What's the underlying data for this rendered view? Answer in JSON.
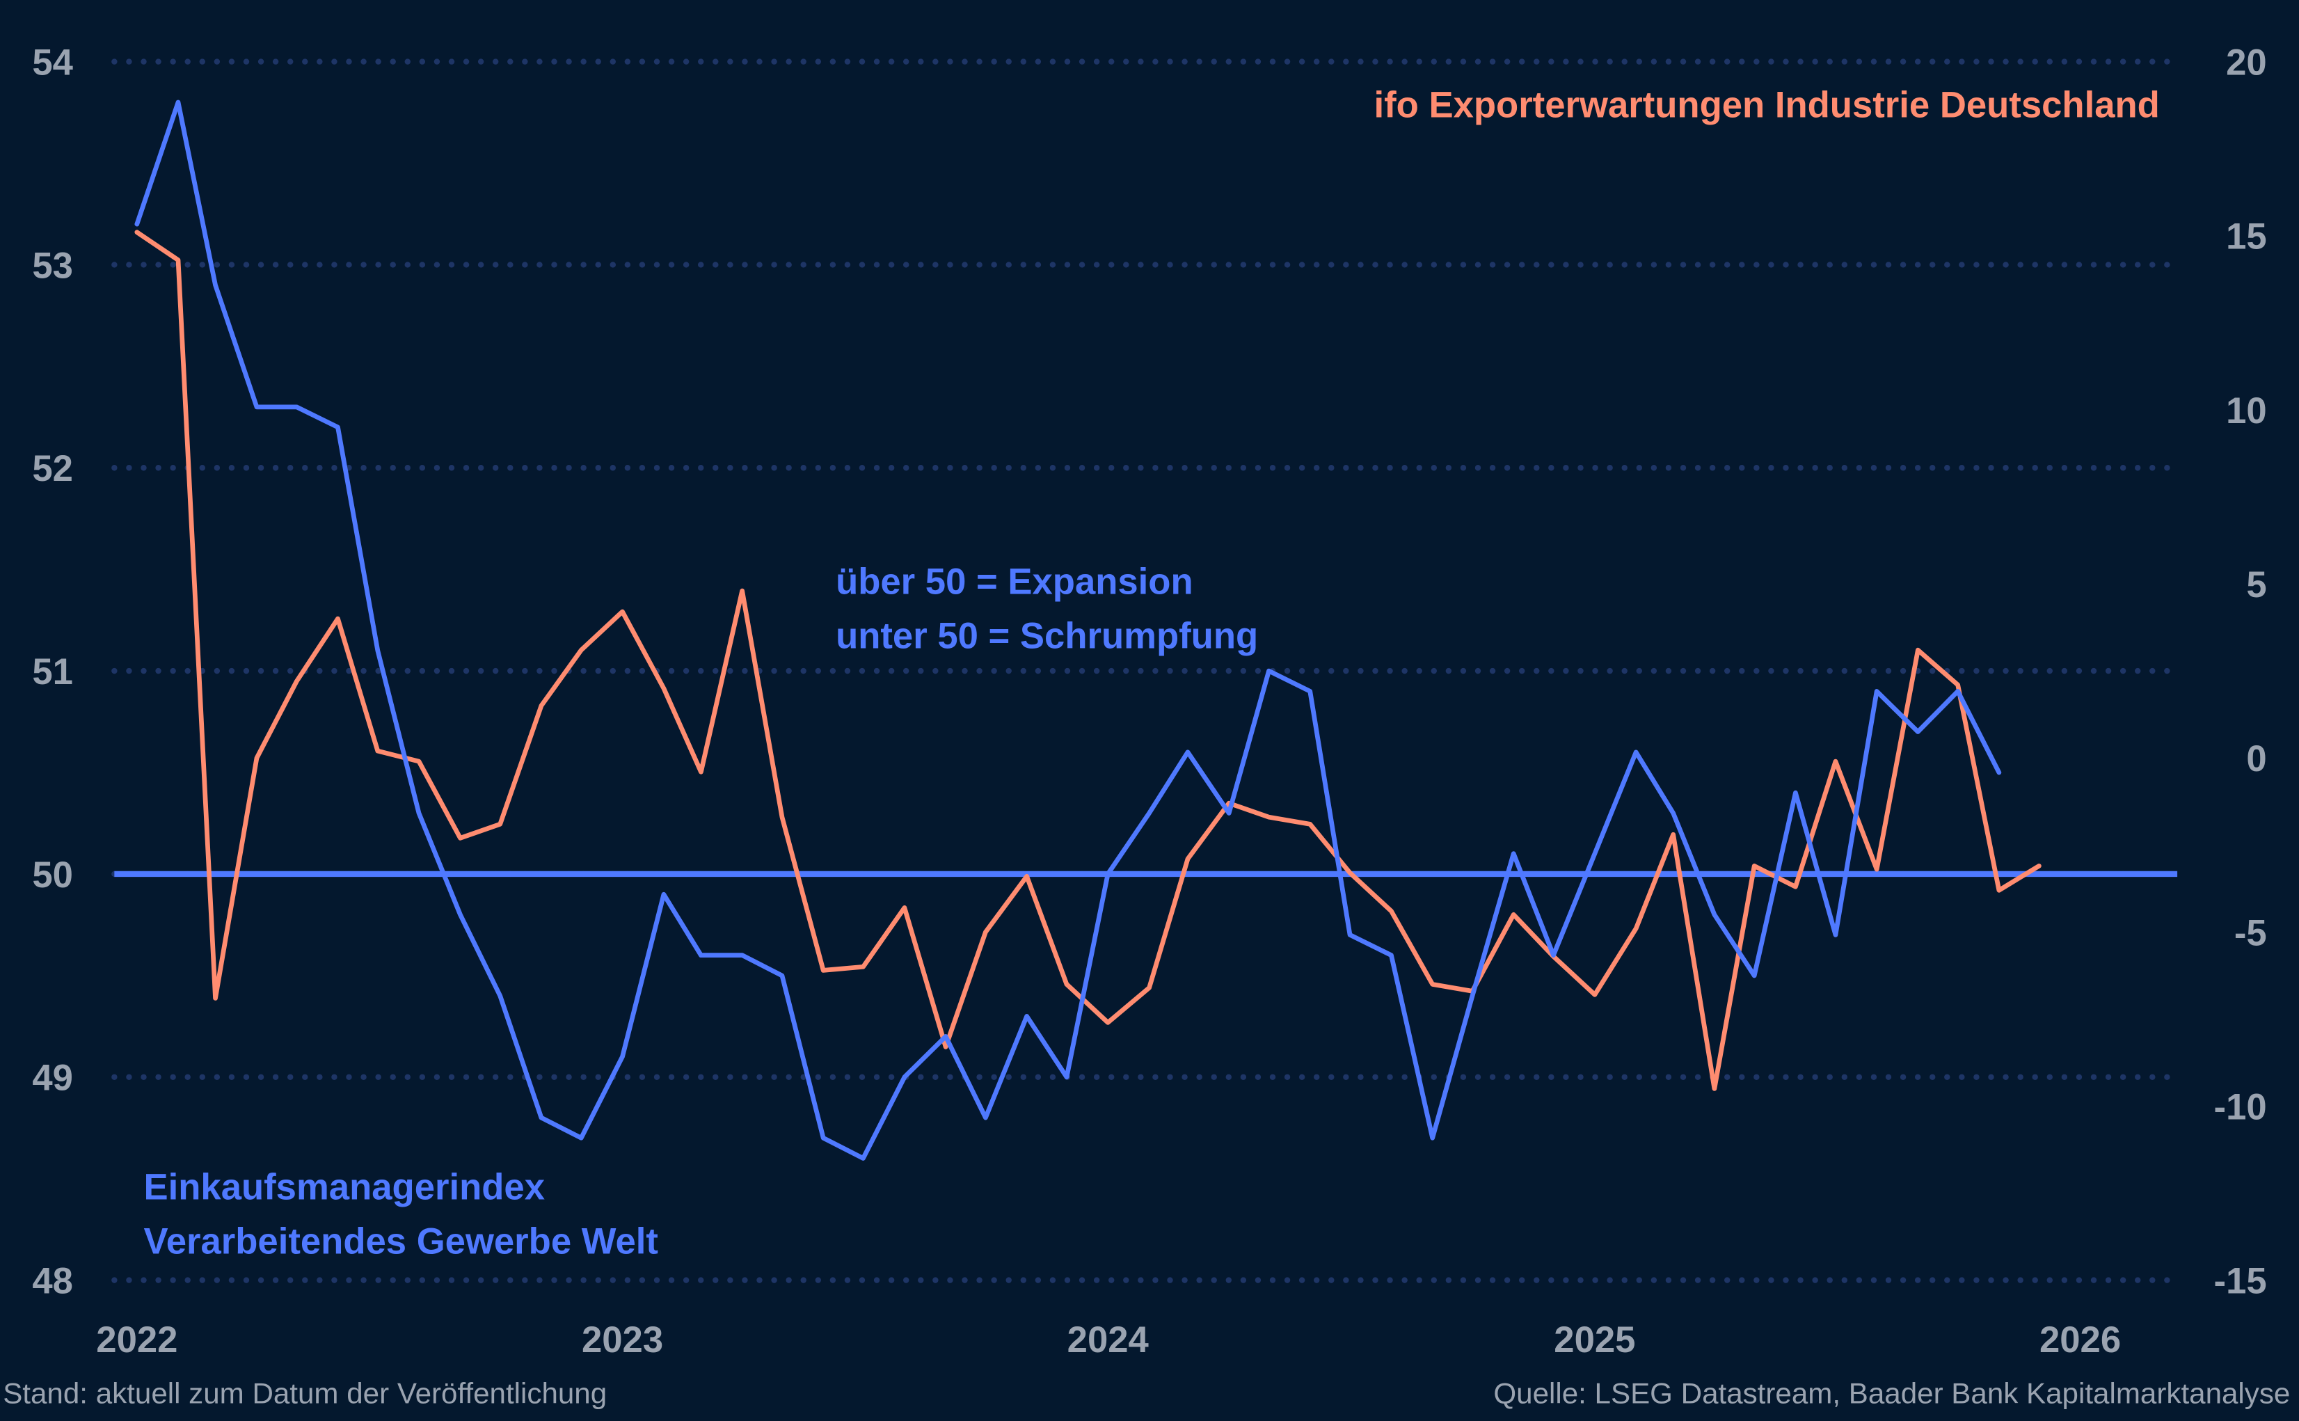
{
  "colors": {
    "background": "#04182e",
    "pmi": "#4f79ff",
    "ifo": "#ff8c70",
    "grid": "#1e3566",
    "ticks": "#9aa3b0"
  },
  "chart_data": {
    "type": "line",
    "x_frequency": "monthly",
    "x": [
      "2022-01",
      "2022-02",
      "2022-03",
      "2022-04",
      "2022-05",
      "2022-06",
      "2022-07",
      "2022-08",
      "2022-09",
      "2022-10",
      "2022-11",
      "2022-12",
      "2023-01",
      "2023-02",
      "2023-03",
      "2023-04",
      "2023-05",
      "2023-06",
      "2023-07",
      "2023-08",
      "2023-09",
      "2023-10",
      "2023-11",
      "2023-12",
      "2024-01",
      "2024-02",
      "2024-03",
      "2024-04",
      "2024-05",
      "2024-06",
      "2024-07",
      "2024-08",
      "2024-09",
      "2024-10",
      "2024-11",
      "2024-12",
      "2025-01",
      "2025-02",
      "2025-03",
      "2025-04",
      "2025-05",
      "2025-06",
      "2025-07",
      "2025-08",
      "2025-09",
      "2025-10",
      "2025-11",
      "2025-12"
    ],
    "xlim": [
      "2021-12-15",
      "2026-03-15"
    ],
    "xticks": [
      "2022",
      "2023",
      "2024",
      "2025",
      "2026"
    ],
    "y_left": {
      "ylim": [
        48,
        54
      ],
      "ticks": [
        "48",
        "49",
        "50",
        "51",
        "52",
        "53",
        "54"
      ]
    },
    "y_right": {
      "ylim": [
        -15,
        20
      ],
      "ticks": [
        "-15",
        "-10",
        "-5",
        "0",
        "5",
        "10",
        "15",
        "20"
      ]
    },
    "grid": "horizontal dotted",
    "reference_line": {
      "axis": "left",
      "value": 50
    },
    "series": [
      {
        "name": "Einkaufsmanagerindex Verarbeitendes Gewerbe Welt",
        "axis": "left",
        "color": "#4f79ff",
        "values": [
          53.2,
          53.8,
          52.9,
          52.3,
          52.3,
          52.2,
          51.1,
          50.3,
          49.8,
          49.4,
          48.8,
          48.7,
          49.1,
          49.9,
          49.6,
          49.6,
          49.5,
          48.7,
          48.6,
          49.0,
          49.2,
          48.8,
          49.3,
          49.0,
          50.0,
          50.3,
          50.6,
          50.3,
          51.0,
          50.9,
          49.7,
          49.6,
          48.7,
          49.4,
          50.1,
          49.6,
          50.1,
          50.6,
          50.3,
          49.8,
          49.5,
          50.4,
          49.7,
          50.9,
          50.7,
          50.9,
          50.5,
          null
        ]
      },
      {
        "name": "ifo Exporterwartungen Industrie Deutschland",
        "axis": "right",
        "color": "#ff8c70",
        "values": [
          15.1,
          14.3,
          -6.9,
          0.0,
          2.2,
          4.0,
          0.2,
          -0.1,
          -2.3,
          -1.9,
          1.5,
          3.1,
          4.2,
          2.0,
          -0.4,
          4.8,
          -1.7,
          -6.1,
          -6.0,
          -4.3,
          -8.3,
          -5.0,
          -3.4,
          -6.5,
          -7.6,
          -6.6,
          -2.9,
          -1.3,
          -1.7,
          -1.9,
          -3.3,
          -4.4,
          -6.5,
          -6.7,
          -4.5,
          -5.7,
          -6.8,
          -4.9,
          -2.2,
          -9.5,
          -3.1,
          -3.7,
          -0.1,
          -3.2,
          3.1,
          2.1,
          -3.8,
          -3.1
        ]
      }
    ],
    "annotations": {
      "ifo_label": "ifo Exporterwartungen Industrie Deutschland",
      "pmi_label_line1": "Einkaufsmanagerindex",
      "pmi_label_line2": "Verarbeitendes Gewerbe Welt",
      "threshold_line1": "über 50 = Expansion",
      "threshold_line2": "unter 50 = Schrumpfung"
    }
  },
  "footer": {
    "left": "Stand: aktuell zum Datum der Veröffentlichung",
    "right": "Quelle: LSEG Datastream, Baader Bank Kapitalmarktanalyse"
  }
}
